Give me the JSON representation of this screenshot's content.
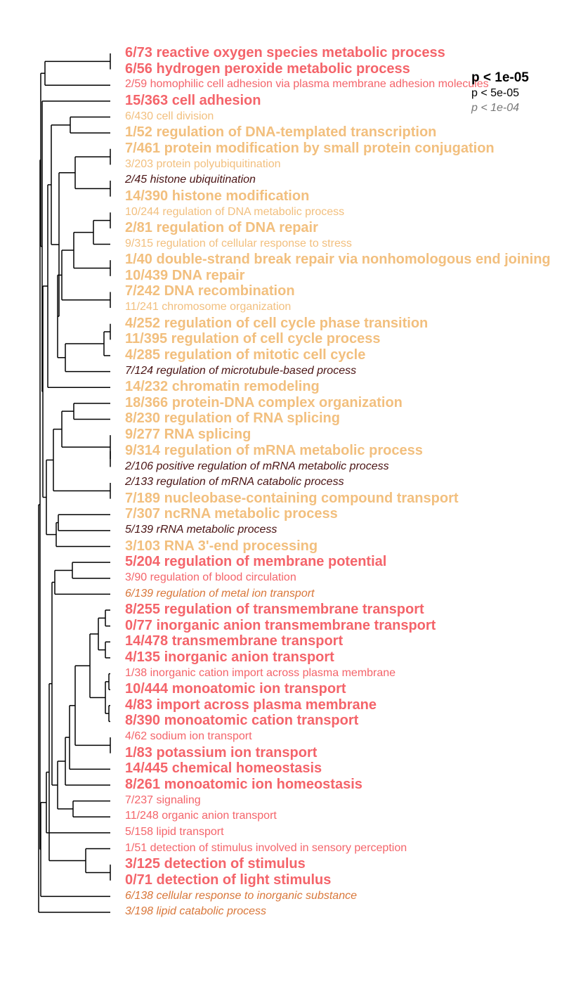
{
  "colors": {
    "red": "#f4646a",
    "orange": "#f2bf7e",
    "dark": "#4a1414",
    "brown": "#d9773a"
  },
  "legend": {
    "strong": "p < 1e-05",
    "medium": "p < 5e-05",
    "weak": "p < 1e-04"
  },
  "terms": [
    {
      "text": "6/73 reactive oxygen species metabolic process",
      "color": "red",
      "sig": "big"
    },
    {
      "text": "6/56 hydrogen peroxide metabolic process",
      "color": "red",
      "sig": "big"
    },
    {
      "text": "2/59 homophilic cell adhesion via plasma membrane adhesion molecules",
      "color": "red",
      "sig": "med"
    },
    {
      "text": "15/363 cell adhesion",
      "color": "red",
      "sig": "big"
    },
    {
      "text": "6/430 cell division",
      "color": "orange",
      "sig": "med"
    },
    {
      "text": "1/52 regulation of DNA-templated transcription",
      "color": "orange",
      "sig": "big"
    },
    {
      "text": "7/461 protein modification by small protein conjugation",
      "color": "orange",
      "sig": "big"
    },
    {
      "text": "3/203 protein polyubiquitination",
      "color": "orange",
      "sig": "med"
    },
    {
      "text": "2/45 histone ubiquitination",
      "color": "dark",
      "sig": "small"
    },
    {
      "text": "14/390 histone modification",
      "color": "orange",
      "sig": "big"
    },
    {
      "text": "10/244 regulation of DNA metabolic process",
      "color": "orange",
      "sig": "med"
    },
    {
      "text": "2/81 regulation of DNA repair",
      "color": "orange",
      "sig": "big"
    },
    {
      "text": "9/315 regulation of cellular response to stress",
      "color": "orange",
      "sig": "med"
    },
    {
      "text": "1/40 double-strand break repair via nonhomologous end joining",
      "color": "orange",
      "sig": "big"
    },
    {
      "text": "10/439 DNA repair",
      "color": "orange",
      "sig": "big"
    },
    {
      "text": "7/242 DNA recombination",
      "color": "orange",
      "sig": "big"
    },
    {
      "text": "11/241 chromosome organization",
      "color": "orange",
      "sig": "med"
    },
    {
      "text": "4/252 regulation of cell cycle phase transition",
      "color": "orange",
      "sig": "big"
    },
    {
      "text": "11/395 regulation of cell cycle process",
      "color": "orange",
      "sig": "big"
    },
    {
      "text": "4/285 regulation of mitotic cell cycle",
      "color": "orange",
      "sig": "big"
    },
    {
      "text": "7/124 regulation of microtubule-based process",
      "color": "dark",
      "sig": "small"
    },
    {
      "text": "14/232 chromatin remodeling",
      "color": "orange",
      "sig": "big"
    },
    {
      "text": "18/366 protein-DNA complex organization",
      "color": "orange",
      "sig": "big"
    },
    {
      "text": "8/230 regulation of RNA splicing",
      "color": "orange",
      "sig": "big"
    },
    {
      "text": "9/277 RNA splicing",
      "color": "orange",
      "sig": "big"
    },
    {
      "text": "9/314 regulation of mRNA metabolic process",
      "color": "orange",
      "sig": "big"
    },
    {
      "text": "2/106 positive regulation of mRNA metabolic process",
      "color": "dark",
      "sig": "small"
    },
    {
      "text": "2/133 regulation of mRNA catabolic process",
      "color": "dark",
      "sig": "small"
    },
    {
      "text": "7/189 nucleobase-containing compound transport",
      "color": "orange",
      "sig": "big"
    },
    {
      "text": "7/307 ncRNA metabolic process",
      "color": "orange",
      "sig": "big"
    },
    {
      "text": "5/139 rRNA metabolic process",
      "color": "dark",
      "sig": "small"
    },
    {
      "text": "3/103 RNA 3'-end processing",
      "color": "orange",
      "sig": "big"
    },
    {
      "text": "5/204 regulation of membrane potential",
      "color": "red",
      "sig": "big"
    },
    {
      "text": "3/90 regulation of blood circulation",
      "color": "red",
      "sig": "med"
    },
    {
      "text": "6/139 regulation of metal ion transport",
      "color": "brown",
      "sig": "small"
    },
    {
      "text": "8/255 regulation of transmembrane transport",
      "color": "red",
      "sig": "big"
    },
    {
      "text": "0/77 inorganic anion transmembrane transport",
      "color": "red",
      "sig": "big"
    },
    {
      "text": "14/478 transmembrane transport",
      "color": "red",
      "sig": "big"
    },
    {
      "text": "4/135 inorganic anion transport",
      "color": "red",
      "sig": "big"
    },
    {
      "text": "1/38 inorganic cation import across plasma membrane",
      "color": "red",
      "sig": "med"
    },
    {
      "text": "10/444 monoatomic ion transport",
      "color": "red",
      "sig": "big"
    },
    {
      "text": "4/83 import across plasma membrane",
      "color": "red",
      "sig": "big"
    },
    {
      "text": "8/390 monoatomic cation transport",
      "color": "red",
      "sig": "big"
    },
    {
      "text": "4/62 sodium ion transport",
      "color": "red",
      "sig": "med"
    },
    {
      "text": "1/83 potassium ion transport",
      "color": "red",
      "sig": "big"
    },
    {
      "text": "14/445 chemical homeostasis",
      "color": "red",
      "sig": "big"
    },
    {
      "text": "8/261 monoatomic ion homeostasis",
      "color": "red",
      "sig": "big"
    },
    {
      "text": "7/237 signaling",
      "color": "red",
      "sig": "med"
    },
    {
      "text": "11/248 organic anion transport",
      "color": "red",
      "sig": "med"
    },
    {
      "text": "5/158 lipid transport",
      "color": "red",
      "sig": "med"
    },
    {
      "text": "1/51 detection of stimulus involved in sensory perception",
      "color": "red",
      "sig": "med"
    },
    {
      "text": "3/125 detection of stimulus",
      "color": "red",
      "sig": "big"
    },
    {
      "text": "0/71 detection of light stimulus",
      "color": "red",
      "sig": "big"
    },
    {
      "text": "6/138 cellular response to inorganic substance",
      "color": "brown",
      "sig": "small"
    },
    {
      "text": "3/198 lipid catabolic process",
      "color": "brown",
      "sig": "small"
    }
  ]
}
